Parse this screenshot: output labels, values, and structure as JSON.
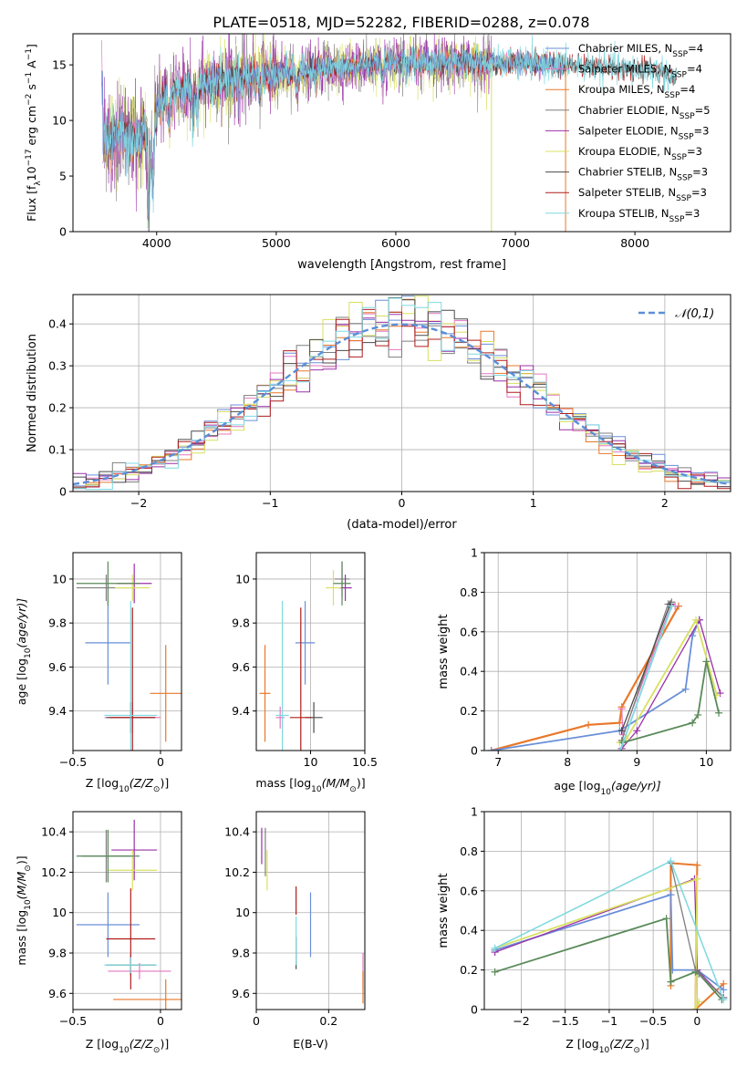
{
  "figure_title": "PLATE=0518, MJD=52282, FIBERID=0288, z=0.078",
  "colors": {
    "Chabrier MILES": "#6a8fd8",
    "Salpeter MILES": "#e377c2",
    "Kroupa MILES": "#e8782a",
    "Chabrier ELODIE": "#7f7f7f",
    "Salpeter ELODIE": "#9b30a8",
    "Kroupa ELODIE": "#d8e060",
    "Chabrier STELIB": "#4a4a4a",
    "Salpeter STELIB": "#b01c1c",
    "Kroupa STELIB": "#7fd8e0",
    "normal": "#5b8fd8",
    "weight_green": "#5a8a5a"
  },
  "chart_data": [
    {
      "type": "line",
      "panel": "spectrum",
      "xlabel": "wavelength [Angstrom, rest frame]",
      "ylabel_parts": [
        "Flux [f",
        "λ",
        "10",
        "−17",
        " erg cm",
        "−2",
        " s",
        "−1",
        " A",
        "−1",
        "]"
      ],
      "xlim": [
        3300,
        8800
      ],
      "ylim": [
        0,
        17.8
      ],
      "xticks": [
        4000,
        5000,
        6000,
        7000,
        8000
      ],
      "yticks": [
        0,
        5,
        10,
        15
      ],
      "legend_position": "right",
      "legend": [
        {
          "main": "Chabrier MILES, N",
          "sub": "SSP",
          "tail": "=4",
          "key": "Chabrier MILES"
        },
        {
          "main": "Salpeter MILES, N",
          "sub": "SSP",
          "tail": "=4",
          "key": "Salpeter MILES"
        },
        {
          "main": "Kroupa MILES, N",
          "sub": "SSP",
          "tail": "=4",
          "key": "Kroupa MILES"
        },
        {
          "main": "Chabrier ELODIE, N",
          "sub": "SSP",
          "tail": "=5",
          "key": "Chabrier ELODIE"
        },
        {
          "main": "Salpeter ELODIE, N",
          "sub": "SSP",
          "tail": "=3",
          "key": "Salpeter ELODIE"
        },
        {
          "main": "Kroupa ELODIE, N",
          "sub": "SSP",
          "tail": "=3",
          "key": "Kroupa ELODIE"
        },
        {
          "main": "Chabrier STELIB, N",
          "sub": "SSP",
          "tail": "=3",
          "key": "Chabrier STELIB"
        },
        {
          "main": "Salpeter STELIB, N",
          "sub": "SSP",
          "tail": "=3",
          "key": "Salpeter STELIB"
        },
        {
          "main": "Kroupa STELIB, N",
          "sub": "SSP",
          "tail": "=3",
          "key": "Kroupa STELIB"
        }
      ],
      "continuum": {
        "x": [
          3550,
          3650,
          3750,
          3850,
          3950,
          4050,
          4200,
          4400,
          4600,
          4800,
          5000,
          5200,
          5400,
          5600,
          5800,
          6000,
          6200,
          6400,
          6600,
          6800,
          7000,
          7200,
          7400,
          7600,
          7800,
          8000,
          8200,
          8350
        ],
        "y": [
          8.0,
          8.6,
          8.7,
          8.3,
          9.5,
          12.0,
          12.8,
          13.3,
          13.7,
          14.0,
          14.2,
          14.4,
          14.6,
          14.8,
          15.0,
          15.1,
          15.2,
          15.2,
          15.3,
          15.1,
          15.2,
          15.1,
          15.0,
          14.9,
          14.8,
          14.6,
          14.5,
          13.8
        ]
      },
      "absorption_features": [
        {
          "x": 3934,
          "depth": 8.5
        },
        {
          "x": 3969,
          "depth": 6.0
        },
        {
          "x": 4102,
          "depth": 2.5
        },
        {
          "x": 4304,
          "depth": 3.0
        },
        {
          "x": 4341,
          "depth": 2.0
        },
        {
          "x": 4861,
          "depth": 1.5
        },
        {
          "x": 5175,
          "depth": 1.5
        },
        {
          "x": 5893,
          "depth": 1.0
        }
      ],
      "spikes": [
        {
          "series": "Chabrier ELODIE",
          "x": 3935,
          "y": 0
        },
        {
          "series": "Kroupa ELODIE",
          "x": 6800,
          "y": 0
        },
        {
          "series": "Kroupa MILES",
          "x": 7420,
          "y": 0
        }
      ]
    },
    {
      "type": "histogram",
      "panel": "residuals",
      "xlabel": "(data-model)/error",
      "ylabel": "Normed distribution",
      "xlim": [
        -2.5,
        2.5
      ],
      "ylim": [
        0,
        0.47
      ],
      "xticks": [
        -2,
        -1,
        0,
        1,
        2
      ],
      "yticks": [
        0,
        0.1,
        0.2,
        0.3,
        0.4
      ],
      "grid": true,
      "legend_position": "top-right",
      "bin_width": 0.1,
      "curve": {
        "name": "𝒩(0,1)",
        "mean": 0,
        "sigma": 1
      }
    },
    {
      "type": "errorbar",
      "panel": "Z-age",
      "xlabel_parts": [
        "Z [log",
        "10",
        "(Z/Z",
        "⊙",
        ")]"
      ],
      "ylabel_parts": [
        "age  [log",
        "10",
        "(age/yr)]"
      ],
      "xlim": [
        -0.5,
        0.12
      ],
      "ylim": [
        9.22,
        10.12
      ],
      "xticks": [
        -0.5,
        0.0
      ],
      "yticks": [
        9.4,
        9.6,
        9.8,
        10.0
      ],
      "grid": true,
      "points": [
        {
          "series": "Chabrier MILES",
          "x": -0.3,
          "xerr": 0.13,
          "y": 9.71,
          "yerr": 0.19
        },
        {
          "series": "Salpeter MILES",
          "x": -0.16,
          "xerr": 0.16,
          "y": 9.37,
          "yerr": 0.07
        },
        {
          "series": "Kroupa MILES",
          "x": 0.03,
          "xerr": 0.09,
          "y": 9.48,
          "yerr": 0.22
        },
        {
          "series": "Chabrier ELODIE",
          "x": -0.31,
          "xerr": 0.17,
          "y": 9.96,
          "yerr": 0.06
        },
        {
          "series": "Salpeter ELODIE",
          "x": -0.15,
          "xerr": 0.1,
          "y": 9.98,
          "yerr": 0.09
        },
        {
          "series": "Kroupa ELODIE",
          "x": -0.16,
          "xerr": 0.1,
          "y": 9.96,
          "yerr": 0.06
        },
        {
          "series": "Chabrier STELIB",
          "x": -0.17,
          "xerr": 0.14,
          "y": 9.37,
          "yerr": 0.07
        },
        {
          "series": "Salpeter STELIB",
          "x": -0.16,
          "xerr": 0.13,
          "y": 9.37,
          "yerr": 0.5
        },
        {
          "series": "Kroupa STELIB",
          "x": -0.17,
          "xerr": 0.15,
          "y": 9.38,
          "yerr": 0.52
        },
        {
          "series": "weight_green",
          "x": -0.3,
          "xerr": 0.18,
          "y": 9.98,
          "yerr": 0.1
        }
      ]
    },
    {
      "type": "errorbar",
      "panel": "mass-age",
      "xlabel_parts": [
        "mass [log",
        "10",
        "(M/M",
        "⊙",
        ")]"
      ],
      "xlim": [
        9.5,
        10.5
      ],
      "ylim": [
        9.22,
        10.12
      ],
      "xticks": [
        10.0,
        10.5
      ],
      "yticks": [
        9.4,
        9.6,
        9.8,
        10.0
      ],
      "grid": true,
      "points": [
        {
          "series": "Chabrier MILES",
          "x": 9.95,
          "xerr": 0.09,
          "y": 9.71,
          "yerr": 0.19
        },
        {
          "series": "Salpeter MILES",
          "x": 9.72,
          "xerr": 0.04,
          "y": 9.37,
          "yerr": 0.05
        },
        {
          "series": "Kroupa MILES",
          "x": 9.58,
          "xerr": 0.05,
          "y": 9.48,
          "yerr": 0.22
        },
        {
          "series": "Chabrier ELODIE",
          "x": 10.29,
          "xerr": 0.07,
          "y": 10.0,
          "yerr": 0.08
        },
        {
          "series": "Salpeter ELODIE",
          "x": 10.32,
          "xerr": 0.06,
          "y": 9.96,
          "yerr": 0.06
        },
        {
          "series": "Kroupa ELODIE",
          "x": 10.21,
          "xerr": 0.07,
          "y": 9.96,
          "yerr": 0.08
        },
        {
          "series": "Chabrier STELIB",
          "x": 10.03,
          "xerr": 0.08,
          "y": 9.37,
          "yerr": 0.07
        },
        {
          "series": "Salpeter STELIB",
          "x": 9.91,
          "xerr": 0.1,
          "y": 9.37,
          "yerr": 0.5
        },
        {
          "series": "Kroupa STELIB",
          "x": 9.74,
          "xerr": 0.06,
          "y": 9.38,
          "yerr": 0.52
        },
        {
          "series": "weight_green",
          "x": 10.29,
          "xerr": 0.08,
          "y": 9.98,
          "yerr": 0.1
        }
      ]
    },
    {
      "type": "line",
      "panel": "age-weight",
      "xlabel_parts": [
        "age  [log",
        "10",
        "(age/yr)]"
      ],
      "ylabel": "mass weight",
      "xlim": [
        6.8,
        10.35
      ],
      "ylim": [
        0,
        1.0
      ],
      "xticks": [
        7,
        8,
        9,
        10
      ],
      "yticks": [
        0.0,
        0.2,
        0.4,
        0.6,
        0.8,
        1.0
      ],
      "grid": true,
      "series": [
        {
          "name": "Kroupa MILES",
          "x": [
            6.9,
            8.3,
            8.75,
            8.78,
            9.6
          ],
          "y": [
            0.0,
            0.13,
            0.14,
            0.22,
            0.73
          ],
          "width": 2.2
        },
        {
          "name": "Salpeter MILES",
          "x": [
            8.78,
            8.8,
            9.5,
            9.55
          ],
          "y": [
            0.21,
            0.08,
            0.74,
            0.73
          ]
        },
        {
          "name": "Chabrier MILES",
          "x": [
            6.9,
            8.75,
            9.7,
            9.8,
            9.9
          ],
          "y": [
            0.0,
            0.1,
            0.31,
            0.58,
            0.66
          ],
          "width": 1.8
        },
        {
          "name": "Salpeter ELODIE",
          "x": [
            8.78,
            9.0,
            9.9,
            10.2
          ],
          "y": [
            0.01,
            0.1,
            0.66,
            0.29
          ]
        },
        {
          "name": "Kroupa ELODIE",
          "x": [
            8.75,
            8.85,
            9.85,
            10.15
          ],
          "y": [
            0.04,
            0.06,
            0.66,
            0.28
          ],
          "width": 1.8
        },
        {
          "name": "Chabrier ELODIE",
          "x": [
            8.78,
            9.45,
            9.5
          ],
          "y": [
            0.05,
            0.74,
            0.75
          ]
        },
        {
          "name": "Chabrier STELIB",
          "x": [
            8.78,
            9.48
          ],
          "y": [
            0.1,
            0.74
          ]
        },
        {
          "name": "weight_green",
          "x": [
            8.8,
            9.8,
            9.88,
            10.0,
            10.18
          ],
          "y": [
            0.04,
            0.14,
            0.18,
            0.45,
            0.19
          ],
          "width": 1.8
        },
        {
          "name": "Kroupa STELIB",
          "x": [
            8.76,
            9.5
          ],
          "y": [
            0.0,
            0.73
          ],
          "width": 1.8
        }
      ]
    },
    {
      "type": "errorbar",
      "panel": "Z-mass",
      "xlabel_parts": [
        "Z [log",
        "10",
        "(Z/Z",
        "⊙",
        ")]"
      ],
      "ylabel_parts": [
        "mass [log",
        "10",
        "(M/M",
        "⊙",
        ")]"
      ],
      "xlim": [
        -0.5,
        0.12
      ],
      "ylim": [
        9.52,
        10.5
      ],
      "xticks": [
        -0.5,
        0.0
      ],
      "yticks": [
        9.6,
        9.8,
        10.0,
        10.2,
        10.4
      ],
      "grid": true,
      "points": [
        {
          "series": "Chabrier MILES",
          "x": -0.3,
          "xerr": 0.18,
          "y": 9.94,
          "yerr": 0.16
        },
        {
          "series": "Salpeter MILES",
          "x": -0.12,
          "xerr": 0.18,
          "y": 9.71,
          "yerr": 0.04
        },
        {
          "series": "Kroupa MILES",
          "x": 0.03,
          "xerr": 0.3,
          "y": 9.57,
          "yerr": 0.1
        },
        {
          "series": "Chabrier ELODIE",
          "x": -0.31,
          "xerr": 0.14,
          "y": 10.28,
          "yerr": 0.13
        },
        {
          "series": "Salpeter ELODIE",
          "x": -0.15,
          "xerr": 0.13,
          "y": 10.31,
          "yerr": 0.15
        },
        {
          "series": "Kroupa ELODIE",
          "x": -0.16,
          "xerr": 0.14,
          "y": 10.21,
          "yerr": 0.1
        },
        {
          "series": "Chabrier STELIB",
          "x": -0.17,
          "xerr": 0.14,
          "y": 9.74,
          "yerr": 0.05
        },
        {
          "series": "Salpeter STELIB",
          "x": -0.17,
          "xerr": 0.14,
          "y": 9.87,
          "yerr": 0.25
        },
        {
          "series": "Kroupa STELIB",
          "x": -0.17,
          "xerr": 0.15,
          "y": 9.74,
          "yerr": 0.04
        },
        {
          "series": "weight_green",
          "x": -0.3,
          "xerr": 0.18,
          "y": 10.28,
          "yerr": 0.13
        }
      ]
    },
    {
      "type": "errorbar",
      "panel": "EBV-mass",
      "xlabel": "E(B-V)",
      "xlim": [
        0.0,
        0.3
      ],
      "ylim": [
        9.52,
        10.5
      ],
      "xticks": [
        0.0,
        0.2
      ],
      "yticks": [
        9.6,
        9.8,
        10.0,
        10.2,
        10.4
      ],
      "grid": true,
      "points": [
        {
          "series": "Chabrier MILES",
          "x": 0.15,
          "xerr": 0.0,
          "y": 9.94,
          "yerr": 0.16
        },
        {
          "series": "Salpeter MILES",
          "x": 0.295,
          "xerr": 0.0,
          "y": 9.71,
          "yerr": 0.09
        },
        {
          "series": "Kroupa MILES",
          "x": 0.295,
          "xerr": 0.0,
          "y": 9.63,
          "yerr": 0.08
        },
        {
          "series": "Chabrier ELODIE",
          "x": 0.025,
          "xerr": 0.0,
          "y": 10.3,
          "yerr": 0.12
        },
        {
          "series": "Salpeter ELODIE",
          "x": 0.015,
          "xerr": 0.0,
          "y": 10.33,
          "yerr": 0.09
        },
        {
          "series": "Kroupa ELODIE",
          "x": 0.03,
          "xerr": 0.0,
          "y": 10.21,
          "yerr": 0.1
        },
        {
          "series": "Chabrier STELIB",
          "x": 0.11,
          "xerr": 0.0,
          "y": 9.8,
          "yerr": 0.08
        },
        {
          "series": "Salpeter STELIB",
          "x": 0.11,
          "xerr": 0.0,
          "y": 10.06,
          "yerr": 0.07
        },
        {
          "series": "Kroupa STELIB",
          "x": 0.11,
          "xerr": 0.0,
          "y": 9.86,
          "yerr": 0.12
        }
      ]
    },
    {
      "type": "line",
      "panel": "Z-weight",
      "xlabel_parts": [
        "Z [log",
        "10",
        "(Z/Z",
        "⊙",
        ")]"
      ],
      "ylabel": "mass weight",
      "xlim": [
        -2.42,
        0.38
      ],
      "ylim": [
        0,
        1.0
      ],
      "xticks": [
        -2.0,
        -1.5,
        -1.0,
        -0.5,
        0.0
      ],
      "yticks": [
        0.0,
        0.2,
        0.4,
        0.6,
        0.8,
        1.0
      ],
      "grid": true,
      "series": [
        {
          "name": "Kroupa MILES",
          "x": [
            -0.3,
            -0.3,
            0.0,
            -0.02,
            0.3
          ],
          "y": [
            0.12,
            0.74,
            0.73,
            0.0,
            0.13
          ],
          "width": 2.0
        },
        {
          "name": "Chabrier MILES",
          "x": [
            -2.3,
            -0.3,
            -0.28,
            0.0,
            0.3
          ],
          "y": [
            0.3,
            0.58,
            0.2,
            0.2,
            0.1
          ],
          "width": 1.8
        },
        {
          "name": "Salpeter ELODIE",
          "x": [
            -2.3,
            -0.03,
            0.0,
            0.3
          ],
          "y": [
            0.29,
            0.66,
            0.2,
            0.06
          ]
        },
        {
          "name": "Kroupa ELODIE",
          "x": [
            -2.3,
            0.0,
            -0.02,
            0.02
          ],
          "y": [
            0.31,
            0.66,
            0.0,
            0.04
          ],
          "width": 1.8
        },
        {
          "name": "weight_green",
          "x": [
            -2.3,
            -0.35,
            -0.3,
            -0.02,
            0.02,
            0.28
          ],
          "y": [
            0.19,
            0.46,
            0.14,
            0.19,
            0.18,
            0.05
          ],
          "width": 1.8
        },
        {
          "name": "Chabrier ELODIE",
          "x": [
            -0.3,
            -0.02,
            0.3
          ],
          "y": [
            0.74,
            0.2,
            0.06
          ]
        },
        {
          "name": "Kroupa STELIB",
          "x": [
            -2.3,
            -0.3,
            0.3
          ],
          "y": [
            0.31,
            0.75,
            0.05
          ],
          "width": 1.5
        }
      ]
    }
  ]
}
